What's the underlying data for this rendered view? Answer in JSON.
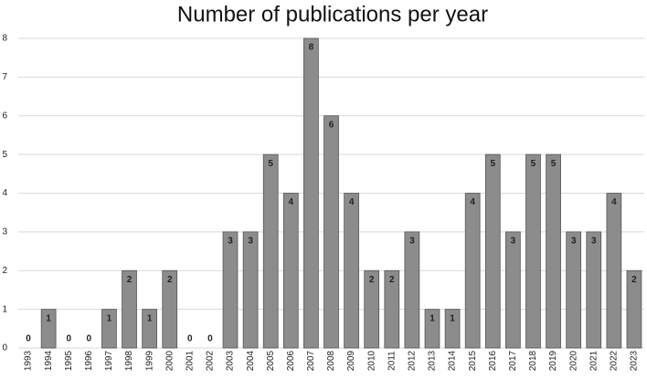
{
  "chart_data": {
    "type": "bar",
    "title": "Number of publications per year",
    "categories": [
      "1993",
      "1994",
      "1995",
      "1996",
      "1997",
      "1998",
      "1999",
      "2000",
      "2001",
      "2002",
      "2003",
      "2004",
      "2005",
      "2006",
      "2007",
      "2008",
      "2009",
      "2010",
      "2011",
      "2012",
      "2013",
      "2014",
      "2015",
      "2016",
      "2017",
      "2018",
      "2019",
      "2020",
      "2021",
      "2022",
      "2023"
    ],
    "values": [
      0,
      1,
      0,
      0,
      1,
      2,
      1,
      2,
      0,
      0,
      3,
      3,
      5,
      4,
      8,
      6,
      4,
      2,
      2,
      3,
      1,
      1,
      4,
      5,
      3,
      5,
      5,
      3,
      3,
      4,
      2
    ],
    "color": "#8c8c8c",
    "ylim": [
      0,
      8
    ],
    "yticks": [
      0,
      1,
      2,
      3,
      4,
      5,
      6,
      7,
      8
    ],
    "grid": true
  }
}
